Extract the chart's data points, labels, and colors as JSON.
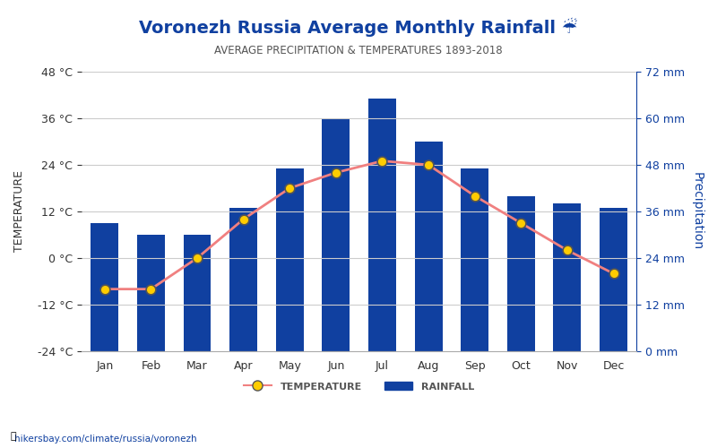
{
  "title": "Voronezh Russia Average Monthly Rainfall ☔",
  "subtitle": "AVERAGE PRECIPITATION & TEMPERATURES 1893-2018",
  "months": [
    "Jan",
    "Feb",
    "Mar",
    "Apr",
    "May",
    "Jun",
    "Jul",
    "Aug",
    "Sep",
    "Oct",
    "Nov",
    "Dec"
  ],
  "rainfall_mm": [
    33,
    30,
    30,
    37,
    47,
    60,
    65,
    54,
    47,
    40,
    38,
    37
  ],
  "temperature_c": [
    -8,
    -8,
    0,
    10,
    18,
    22,
    25,
    24,
    16,
    9,
    2,
    -4
  ],
  "bar_color": "#1040a0",
  "line_color": "#f08080",
  "marker_facecolor": "#ffcc00",
  "marker_edgecolor": "#555555",
  "title_color": "#1040a0",
  "subtitle_color": "#555555",
  "left_axis_color": "#333333",
  "right_axis_color": "#1040a0",
  "temp_ylim": [
    -24,
    48
  ],
  "temp_yticks": [
    -24,
    -12,
    0,
    12,
    24,
    36,
    48
  ],
  "precip_ylim": [
    0,
    72
  ],
  "precip_yticks": [
    0,
    12,
    24,
    36,
    48,
    60,
    72
  ],
  "background_color": "#ffffff",
  "watermark": "hikersbay.com/climate/russia/voronezh",
  "xlabel_temp": "TEMPERATURE",
  "xlabel_precip": "Precipitation",
  "legend_temp": "TEMPERATURE",
  "legend_rain": "RAINFALL"
}
